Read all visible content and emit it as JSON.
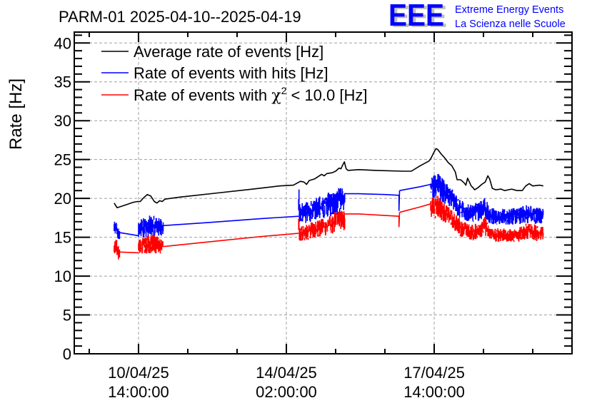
{
  "chart_data": {
    "type": "line",
    "title": "PARM-01 2025-04-10--2025-04-19",
    "xlabel": "",
    "ylabel": "Rate [Hz]",
    "ylim": [
      0,
      41.4
    ],
    "y_ticks": [
      0,
      5,
      10,
      15,
      20,
      25,
      30,
      35,
      40
    ],
    "y_minor_step": 1,
    "x_units": "hours since 10/04/25 14:00:00",
    "xlim": [
      -36.5,
      246.3
    ],
    "x_ticks": [
      {
        "hours": 0,
        "label": [
          "10/04/25",
          "14:00:00"
        ]
      },
      {
        "hours": 84,
        "label": [
          "14/04/25",
          "02:00:00"
        ]
      },
      {
        "hours": 168,
        "label": [
          "17/04/25",
          "14:00:00"
        ]
      }
    ],
    "x_minor_step_hours": 28,
    "grid": true,
    "legend": {
      "placement": "top-left",
      "entries": [
        {
          "label": "Average rate of events [Hz]",
          "color": "#000000"
        },
        {
          "label": "Rate of events with hits [Hz]",
          "color": "#0000ff"
        },
        {
          "label": "Rate of events with χ² < 10.0 [Hz]",
          "color": "#ff0000",
          "label_main": "Rate of events with ",
          "label_chi": "χ",
          "label_sup": "2",
          "label_tail": " < 10.0 [Hz]"
        }
      ]
    },
    "series": [
      {
        "name": "Average rate of events [Hz]",
        "color": "#000000",
        "kind": "smooth",
        "points": [
          [
            -13.8,
            19.4
          ],
          [
            -12.2,
            18.8
          ],
          [
            -8,
            19.1
          ],
          [
            -3,
            19.5
          ],
          [
            -0.5,
            19.6
          ],
          [
            1,
            19.6
          ],
          [
            3,
            20.1
          ],
          [
            5,
            20.5
          ],
          [
            7,
            20.3
          ],
          [
            9,
            19.6
          ],
          [
            10.5,
            19.4
          ],
          [
            12,
            19.7
          ],
          [
            13.5,
            19.6
          ],
          [
            15,
            19.9
          ],
          [
            25,
            20.2
          ],
          [
            45,
            20.7
          ],
          [
            65,
            21.2
          ],
          [
            80,
            21.6
          ],
          [
            88,
            21.7
          ],
          [
            92,
            22.2
          ],
          [
            94,
            22.1
          ],
          [
            95.5,
            21.8
          ],
          [
            97,
            22.3
          ],
          [
            100,
            22.5
          ],
          [
            104,
            23.1
          ],
          [
            105.5,
            22.9
          ],
          [
            107,
            23.2
          ],
          [
            110,
            23.3
          ],
          [
            112,
            23.5
          ],
          [
            114,
            23.9
          ],
          [
            115,
            23.8
          ],
          [
            116,
            24.3
          ],
          [
            117,
            24.7
          ],
          [
            117.5,
            24.2
          ],
          [
            118,
            23.8
          ],
          [
            119,
            23.6
          ],
          [
            125,
            23.7
          ],
          [
            135,
            23.6
          ],
          [
            150,
            23.5
          ],
          [
            155,
            23.5
          ],
          [
            160,
            24.2
          ],
          [
            165,
            24.8
          ],
          [
            166,
            25.1
          ],
          [
            168,
            26.0
          ],
          [
            169,
            26.4
          ],
          [
            170,
            26.3
          ],
          [
            172,
            25.7
          ],
          [
            174,
            25.2
          ],
          [
            176,
            24.6
          ],
          [
            178,
            24.2
          ],
          [
            180,
            23.4
          ],
          [
            181,
            22.4
          ],
          [
            183,
            22.4
          ],
          [
            185,
            22.0
          ],
          [
            186,
            21.7
          ],
          [
            187,
            22.6
          ],
          [
            188,
            22.1
          ],
          [
            189,
            21.6
          ],
          [
            190,
            21.4
          ],
          [
            191,
            21.1
          ],
          [
            193,
            21.4
          ],
          [
            195,
            21.8
          ],
          [
            197,
            22.1
          ],
          [
            198.5,
            22.9
          ],
          [
            199.5,
            22.5
          ],
          [
            201,
            21.3
          ],
          [
            203,
            21.1
          ],
          [
            206,
            21.2
          ],
          [
            208,
            21.0
          ],
          [
            212,
            21.2
          ],
          [
            215,
            21.0
          ],
          [
            218,
            21.0
          ],
          [
            220,
            21.6
          ],
          [
            222,
            21.9
          ],
          [
            224,
            21.6
          ],
          [
            228,
            21.7
          ],
          [
            230,
            21.6
          ]
        ]
      },
      {
        "name": "Rate of events with hits [Hz]",
        "color": "#0000ff",
        "kind": "noisy",
        "segments": [
          {
            "type": "band",
            "points": [
              [
                -13.8,
                15.0,
                17.0
              ],
              [
                -12.5,
                15.5,
                17.0
              ],
              [
                -11.5,
                14.5,
                16.3
              ],
              [
                -10.8,
                14.5,
                16.0
              ]
            ]
          },
          {
            "type": "line",
            "points": [
              [
                -10.8,
                15.6
              ],
              [
                0,
                15.2
              ]
            ]
          },
          {
            "type": "band",
            "points": [
              [
                0,
                14.8,
                17.2
              ],
              [
                4,
                15.0,
                17.8
              ],
              [
                8,
                15.2,
                17.8
              ],
              [
                12,
                15.0,
                17.5
              ],
              [
                14,
                15.2,
                17.0
              ]
            ]
          },
          {
            "type": "line",
            "points": [
              [
                14,
                16.5
              ],
              [
                40,
                16.9
              ],
              [
                70,
                17.4
              ],
              [
                91,
                17.7
              ]
            ]
          },
          {
            "type": "band",
            "points": [
              [
                91,
                16.6,
                19.3
              ],
              [
                96,
                16.8,
                19.6
              ],
              [
                102,
                17.3,
                20.2
              ],
              [
                108,
                17.6,
                20.8
              ],
              [
                114,
                17.9,
                21.5
              ],
              [
                117,
                18.3,
                21.2
              ]
            ]
          },
          {
            "type": "line",
            "points": [
              [
                117,
                20.6
              ],
              [
                125,
                20.6
              ],
              [
                140,
                20.5
              ],
              [
                148,
                20.4
              ]
            ]
          },
          {
            "type": "dip",
            "points": [
              [
                148,
                20.4
              ],
              [
                148,
                18.4
              ],
              [
                148.3,
                21.0
              ]
            ]
          },
          {
            "type": "line",
            "points": [
              [
                148.3,
                21.0
              ],
              [
                160,
                21.5
              ],
              [
                166,
                21.8
              ]
            ]
          },
          {
            "type": "band",
            "points": [
              [
                166,
                19.5,
                22.7
              ],
              [
                170,
                20.0,
                23.3
              ],
              [
                174,
                19.2,
                22.2
              ],
              [
                178,
                18.5,
                21.2
              ],
              [
                182,
                17.5,
                20.0
              ],
              [
                186,
                17.0,
                19.5
              ],
              [
                190,
                16.8,
                19.2
              ],
              [
                194,
                17.2,
                19.8
              ],
              [
                197,
                17.5,
                20.3
              ],
              [
                199,
                16.8,
                19.0
              ],
              [
                203,
                16.6,
                18.7
              ],
              [
                210,
                16.6,
                18.7
              ],
              [
                216,
                16.6,
                18.8
              ],
              [
                220,
                16.8,
                19.2
              ],
              [
                226,
                16.7,
                19.0
              ],
              [
                230,
                16.8,
                18.7
              ]
            ]
          }
        ]
      },
      {
        "name": "Rate of events with χ² < 10.0 [Hz]",
        "color": "#ff0000",
        "kind": "noisy",
        "segments": [
          {
            "type": "band",
            "points": [
              [
                -13.8,
                12.8,
                14.6
              ],
              [
                -12.5,
                12.5,
                14.9
              ],
              [
                -11.5,
                11.8,
                14.1
              ],
              [
                -10.8,
                12.5,
                13.4
              ]
            ]
          },
          {
            "type": "line",
            "points": [
              [
                -10.8,
                13.1
              ],
              [
                0,
                13.0
              ]
            ]
          },
          {
            "type": "band",
            "points": [
              [
                0,
                12.5,
                14.7
              ],
              [
                4,
                12.8,
                15.2
              ],
              [
                8,
                13.0,
                15.5
              ],
              [
                12,
                12.8,
                15.0
              ],
              [
                14,
                13.2,
                14.6
              ]
            ]
          },
          {
            "type": "line",
            "points": [
              [
                14,
                13.8
              ],
              [
                40,
                14.4
              ],
              [
                70,
                15.1
              ],
              [
                91,
                15.5
              ]
            ]
          },
          {
            "type": "band",
            "points": [
              [
                91,
                14.5,
                16.2
              ],
              [
                96,
                14.6,
                16.8
              ],
              [
                102,
                14.9,
                17.2
              ],
              [
                108,
                15.3,
                17.6
              ],
              [
                114,
                15.7,
                18.8
              ],
              [
                117,
                15.9,
                18.3
              ]
            ]
          },
          {
            "type": "line",
            "points": [
              [
                117,
                18.0
              ],
              [
                125,
                18.0
              ],
              [
                140,
                17.8
              ],
              [
                148,
                17.7
              ]
            ]
          },
          {
            "type": "dip",
            "points": [
              [
                148,
                17.7
              ],
              [
                148,
                16.3
              ],
              [
                148.3,
                18.2
              ]
            ]
          },
          {
            "type": "line",
            "points": [
              [
                148.3,
                18.2
              ],
              [
                160,
                18.9
              ],
              [
                166,
                19.3
              ]
            ]
          },
          {
            "type": "band",
            "points": [
              [
                166,
                17.3,
                20.2
              ],
              [
                170,
                17.5,
                20.5
              ],
              [
                174,
                16.8,
                19.3
              ],
              [
                178,
                16.2,
                18.5
              ],
              [
                182,
                15.2,
                17.5
              ],
              [
                186,
                14.8,
                16.9
              ],
              [
                190,
                14.5,
                16.6
              ],
              [
                194,
                15.0,
                17.0
              ],
              [
                197,
                15.2,
                17.8
              ],
              [
                199,
                14.8,
                16.4
              ],
              [
                203,
                14.4,
                16.2
              ],
              [
                210,
                14.4,
                16.1
              ],
              [
                216,
                14.4,
                16.3
              ],
              [
                220,
                14.7,
                16.8
              ],
              [
                226,
                14.5,
                16.6
              ],
              [
                230,
                14.7,
                16.3
              ]
            ]
          }
        ]
      }
    ]
  },
  "logo": {
    "letters": "EEE",
    "line1": "Extreme Energy Events",
    "line2": "La Scienza nelle Scuole",
    "color": "#0000ff",
    "shadow_color": "#c0c0c0"
  }
}
